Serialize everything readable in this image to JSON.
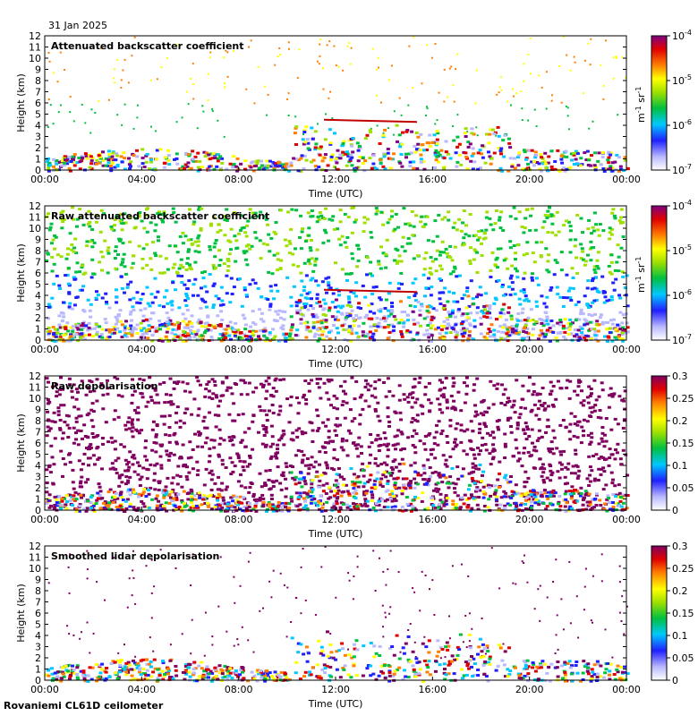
{
  "date_label": "31 Jan 2025",
  "footer_label": "Rovaniemi CL61D ceilometer",
  "chart_data": [
    {
      "type": "heatmap",
      "title": "Attenuated backscatter coefficient",
      "xlabel": "Time (UTC)",
      "ylabel": "Height (km)",
      "xticks": [
        "00:00",
        "04:00",
        "08:00",
        "12:00",
        "16:00",
        "20:00",
        "00:00"
      ],
      "yticks": [
        "0",
        "1",
        "2",
        "3",
        "4",
        "5",
        "6",
        "7",
        "8",
        "9",
        "10",
        "11",
        "12"
      ],
      "ylim": [
        0,
        12
      ],
      "colorbar": {
        "scale": "log",
        "ticks": [
          "10",
          "10",
          "10",
          "10"
        ],
        "exponents": [
          "-4",
          "-5",
          "-6",
          "-7"
        ],
        "unit_base": "m",
        "unit_exp1": "-1",
        "unit_mid": " sr",
        "unit_exp2": "-1"
      }
    },
    {
      "type": "heatmap",
      "title": "Raw attenuated backscatter coefficient",
      "xlabel": "Time (UTC)",
      "ylabel": "Height (km)",
      "xticks": [
        "00:00",
        "04:00",
        "08:00",
        "12:00",
        "16:00",
        "20:00",
        "00:00"
      ],
      "yticks": [
        "0",
        "1",
        "2",
        "3",
        "4",
        "5",
        "6",
        "7",
        "8",
        "9",
        "10",
        "11",
        "12"
      ],
      "ylim": [
        0,
        12
      ],
      "colorbar": {
        "scale": "log",
        "ticks": [
          "10",
          "10",
          "10",
          "10"
        ],
        "exponents": [
          "-4",
          "-5",
          "-6",
          "-7"
        ],
        "unit_base": "m",
        "unit_exp1": "-1",
        "unit_mid": " sr",
        "unit_exp2": "-1"
      }
    },
    {
      "type": "heatmap",
      "title": "Raw depolarisation",
      "xlabel": "Time (UTC)",
      "ylabel": "Height (km)",
      "xticks": [
        "00:00",
        "04:00",
        "08:00",
        "12:00",
        "16:00",
        "20:00",
        "00:00"
      ],
      "yticks": [
        "0",
        "1",
        "2",
        "3",
        "4",
        "5",
        "6",
        "7",
        "8",
        "9",
        "10",
        "11",
        "12"
      ],
      "ylim": [
        0,
        12
      ],
      "colorbar": {
        "scale": "linear",
        "ticks": [
          "0.3",
          "0.25",
          "0.2",
          "0.15",
          "0.1",
          "0.05",
          "0"
        ]
      }
    },
    {
      "type": "heatmap",
      "title": "Smoothed lidar depolarisation",
      "xlabel": "Time (UTC)",
      "ylabel": "Height (km)",
      "xticks": [
        "00:00",
        "04:00",
        "08:00",
        "12:00",
        "16:00",
        "20:00",
        "00:00"
      ],
      "yticks": [
        "0",
        "1",
        "2",
        "3",
        "4",
        "5",
        "6",
        "7",
        "8",
        "9",
        "10",
        "11",
        "12"
      ],
      "ylim": [
        0,
        12
      ],
      "colorbar": {
        "scale": "linear",
        "ticks": [
          "0.3",
          "0.25",
          "0.2",
          "0.15",
          "0.1",
          "0.05",
          "0"
        ]
      }
    }
  ]
}
